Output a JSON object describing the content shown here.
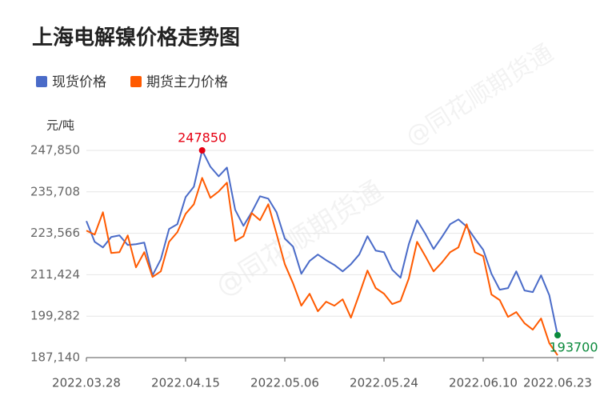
{
  "chart_data": {
    "type": "line",
    "title": "上海电解镍价格走势图",
    "ylabel": "元/吨",
    "watermark": "@同花顺期货通",
    "categories": [
      "2022.03.28",
      null,
      null,
      null,
      null,
      null,
      null,
      null,
      null,
      null,
      null,
      null,
      "2022.04.15",
      null,
      null,
      null,
      null,
      null,
      null,
      null,
      null,
      null,
      null,
      null,
      "2022.05.06",
      null,
      null,
      null,
      null,
      null,
      null,
      null,
      null,
      null,
      null,
      null,
      "2022.05.24",
      null,
      null,
      null,
      null,
      null,
      null,
      null,
      null,
      null,
      null,
      null,
      "2022.06.10",
      null,
      null,
      null,
      null,
      null,
      null,
      null,
      null,
      "2022.06.23"
    ],
    "series": [
      {
        "name": "现货价格",
        "color": "#4a6bc8",
        "values": [
          227150,
          221070,
          219430,
          222470,
          222940,
          220130,
          220370,
          220840,
          211240,
          215920,
          224810,
          226220,
          234170,
          237220,
          247850,
          243070,
          240260,
          242830,
          230430,
          225750,
          229730,
          234410,
          233710,
          229730,
          222010,
          219670,
          211710,
          215450,
          217330,
          215690,
          214280,
          212410,
          214520,
          217330,
          222710,
          218500,
          218030,
          212880,
          210540,
          220370,
          227390,
          223410,
          218960,
          222470,
          226220,
          227620,
          225520,
          222010,
          218730,
          211710,
          207030,
          207500,
          212410,
          206800,
          206330,
          211240,
          205390,
          193700
        ]
      },
      {
        "name": "期货主力价格",
        "color": "#ff5a00",
        "values": [
          224350,
          223180,
          229730,
          217790,
          218030,
          222940,
          213580,
          218030,
          210770,
          212410,
          221070,
          223880,
          229260,
          232070,
          239790,
          233940,
          235810,
          238390,
          221300,
          222710,
          229490,
          227390,
          232070,
          223410,
          214520,
          208900,
          202350,
          205860,
          200710,
          203520,
          202350,
          204220,
          198840,
          205630,
          212650,
          207500,
          205860,
          202820,
          203750,
          210310,
          221070,
          216860,
          212410,
          214990,
          218030,
          219430,
          226220,
          218030,
          216860,
          205630,
          203990,
          199070,
          200480,
          197200,
          195330,
          198610,
          191350,
          187840
        ]
      }
    ],
    "ylim": [
      187140,
      247850
    ],
    "yticks": [
      {
        "value": 187140,
        "label": "187,140"
      },
      {
        "value": 199282,
        "label": "199,282"
      },
      {
        "value": 211424,
        "label": "211,424"
      },
      {
        "value": 223566,
        "label": "223,566"
      },
      {
        "value": 235708,
        "label": "235,708"
      },
      {
        "value": 247850,
        "label": "247,850"
      }
    ],
    "grid": true,
    "max_label_color": "#e60012",
    "last_label_color": "#0b8a3c"
  }
}
